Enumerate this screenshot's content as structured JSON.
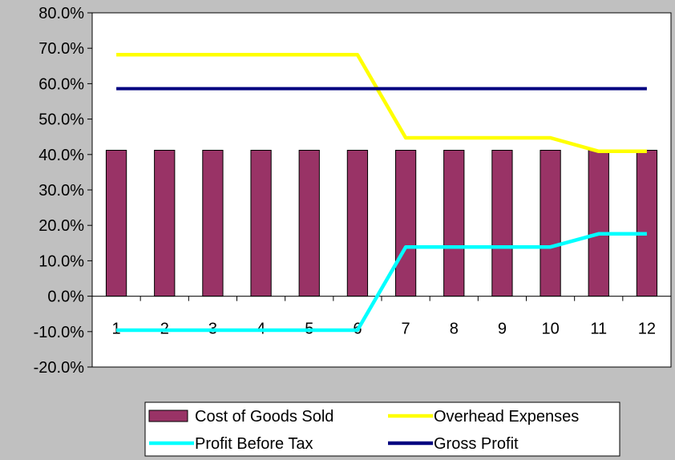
{
  "chart_data": {
    "type": "bar",
    "categories": [
      "1",
      "2",
      "3",
      "4",
      "5",
      "6",
      "7",
      "8",
      "9",
      "10",
      "11",
      "12"
    ],
    "ylim": [
      -20,
      80
    ],
    "yticks": [
      -20,
      -10,
      0,
      10,
      20,
      30,
      40,
      50,
      60,
      70,
      80
    ],
    "ytick_labels": [
      "-20.0%",
      "-10.0%",
      "0.0%",
      "10.0%",
      "20.0%",
      "30.0%",
      "40.0%",
      "50.0%",
      "60.0%",
      "70.0%",
      "80.0%"
    ],
    "grid": false,
    "legend_position": "bottom",
    "series": [
      {
        "name": "Cost of Goods Sold",
        "kind": "bar",
        "color": "#993366",
        "values": [
          41.2,
          41.2,
          41.2,
          41.2,
          41.2,
          41.2,
          41.2,
          41.2,
          41.2,
          41.2,
          41.2,
          41.2
        ]
      },
      {
        "name": "Overhead Expenses",
        "kind": "line",
        "color": "#ffff00",
        "values": [
          68.2,
          68.2,
          68.2,
          68.2,
          68.2,
          68.2,
          44.7,
          44.7,
          44.7,
          44.7,
          40.9,
          40.9
        ]
      },
      {
        "name": "Profit Before Tax",
        "kind": "line",
        "color": "#00ffff",
        "values": [
          -9.6,
          -9.6,
          -9.6,
          -9.6,
          -9.6,
          -9.6,
          13.9,
          13.9,
          13.9,
          13.9,
          17.6,
          17.6
        ]
      },
      {
        "name": "Gross Profit",
        "kind": "line",
        "color": "#000080",
        "values": [
          58.6,
          58.6,
          58.6,
          58.6,
          58.6,
          58.6,
          58.6,
          58.6,
          58.6,
          58.6,
          58.6,
          58.6
        ]
      }
    ],
    "legend_order": [
      "Cost of Goods Sold",
      "Overhead Expenses",
      "Profit Before Tax",
      "Gross Profit"
    ]
  }
}
